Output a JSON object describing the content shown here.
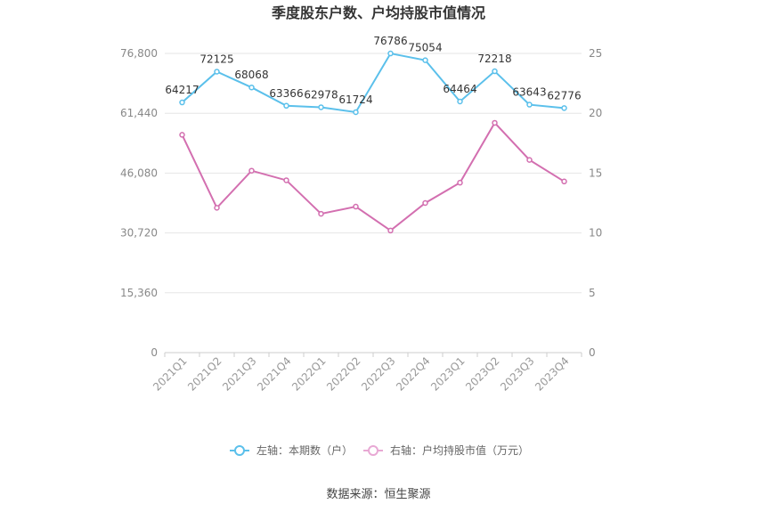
{
  "chart_data": {
    "type": "line",
    "title": "季度股东户数、户均持股市值情况",
    "categories": [
      "2021Q1",
      "2021Q2",
      "2021Q3",
      "2021Q4",
      "2022Q1",
      "2022Q2",
      "2022Q3",
      "2022Q4",
      "2023Q1",
      "2023Q2",
      "2023Q3",
      "2023Q4"
    ],
    "left_axis": {
      "ylim": [
        0,
        76800
      ],
      "ticks": [
        0,
        15360,
        30720,
        46080,
        61440,
        76800
      ],
      "tick_labels": [
        "0",
        "15,360",
        "30,720",
        "46,080",
        "61,440",
        "76,800"
      ]
    },
    "right_axis": {
      "ylim": [
        0,
        25
      ],
      "ticks": [
        0,
        5,
        10,
        15,
        20,
        25
      ],
      "tick_labels": [
        "0",
        "5",
        "10",
        "15",
        "20",
        "25"
      ]
    },
    "grid": true,
    "legend_position": "bottom",
    "series": [
      {
        "name": "左轴：本期数（户）",
        "axis": "left",
        "color": "#5bc0eb",
        "values": [
          64217,
          72125,
          68068,
          63366,
          62978,
          61724,
          76786,
          75054,
          64464,
          72218,
          63643,
          62776
        ],
        "data_labels": [
          "64217",
          "72125",
          "68068",
          "63366",
          "62978",
          "61724",
          "76786",
          "75054",
          "64464",
          "72218",
          "63643",
          "62776"
        ]
      },
      {
        "name": "右轴：户均持股市值（万元）",
        "axis": "right",
        "color": "#d36fb0",
        "values": [
          18.2,
          12.1,
          15.2,
          14.4,
          11.6,
          12.2,
          10.2,
          12.5,
          14.2,
          19.2,
          16.1,
          14.3
        ]
      }
    ],
    "source": "数据来源：恒生聚源"
  }
}
